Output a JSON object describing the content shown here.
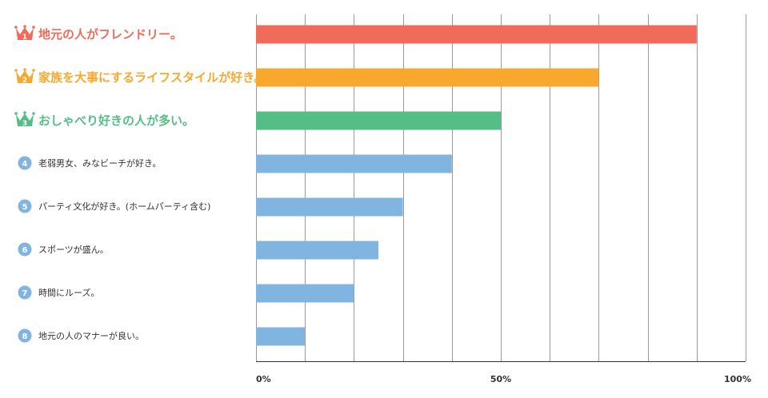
{
  "colors": {
    "rank1": "#f06b5a",
    "rank2": "#f8a82d",
    "rank3": "#55be86",
    "other": "#80b5e2",
    "grid": "#9a9a9a",
    "axis": "#333333",
    "text": "#333333"
  },
  "icons": {
    "top3": "crown-icon",
    "others": "circle-number-icon"
  },
  "chart_data": {
    "type": "bar",
    "orientation": "horizontal",
    "categories": [
      "地元の人がフレンドリー。",
      "家族を大事にするライフスタイルが好き。",
      "おしゃべり好きの人が多い。",
      "老弱男女、みなビーチが好き。",
      "パーティ文化が好き。(ホームパーティ含む)",
      "スポーツが盛ん。",
      "時間にルーズ。",
      "地元の人のマナーが良い。"
    ],
    "ranks": [
      "1",
      "2",
      "3",
      "4",
      "5",
      "6",
      "7",
      "8"
    ],
    "values": [
      90,
      70,
      50,
      40,
      30,
      25,
      20,
      10
    ],
    "unit": "%",
    "xlim": [
      0,
      100
    ],
    "ticks": [
      0,
      10,
      20,
      30,
      40,
      50,
      60,
      70,
      80,
      90,
      100
    ],
    "tick_labels": [
      {
        "value": 0,
        "label": "0%"
      },
      {
        "value": 50,
        "label": "50%"
      },
      {
        "value": 100,
        "label": "100%"
      }
    ],
    "grid": true,
    "legend": false
  }
}
